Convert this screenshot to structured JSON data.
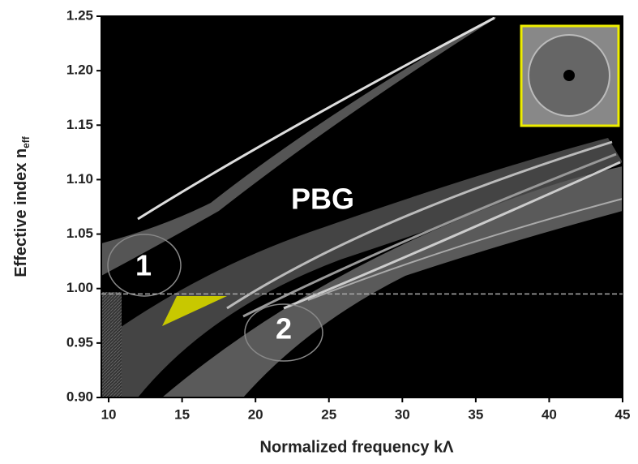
{
  "chart_data": {
    "type": "band-diagram",
    "xlabel": "Normalized frequency kΛ",
    "ylabel": "Effective index n",
    "ylabel_subscript": "eff",
    "xlim": [
      9.5,
      45
    ],
    "xticks": [
      10,
      15,
      20,
      25,
      30,
      35,
      40,
      45
    ],
    "ylim": [
      0.9,
      1.25
    ],
    "yticks": [
      {
        "value": 0.9,
        "label": "0.90"
      },
      {
        "value": 0.95,
        "label": "0.95"
      },
      {
        "value": 1.0,
        "label": "1.00"
      },
      {
        "value": 1.05,
        "label": "1.05"
      },
      {
        "value": 1.1,
        "label": "1.10"
      },
      {
        "value": 1.15,
        "label": "1.15"
      },
      {
        "value": 1.2,
        "label": "1.20"
      },
      {
        "value": 1.25,
        "label": "1.25"
      }
    ],
    "reference_line": 0.995,
    "annotations": [
      "PBG",
      "1",
      "2"
    ]
  }
}
